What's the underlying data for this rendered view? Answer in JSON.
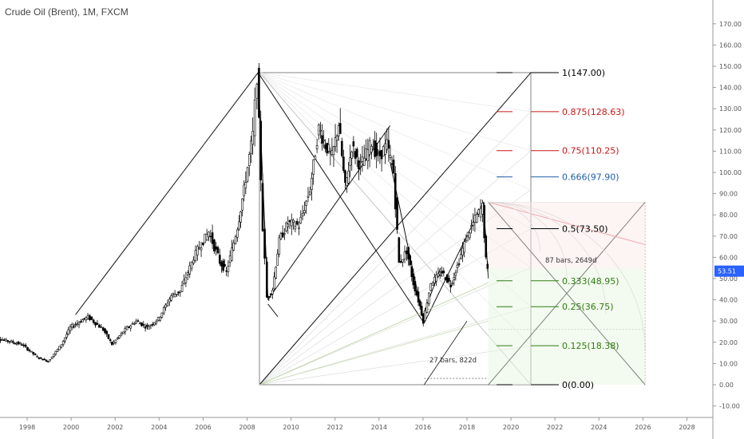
{
  "header": {
    "title": "Crude Oil (Brent), 1M, FXCM"
  },
  "chart_data": {
    "type": "candlestick",
    "title": "Crude Oil (Brent), 1M, FXCM",
    "ylim": [
      -15,
      175
    ],
    "xlim": [
      1996.3,
      2029.3
    ],
    "y_ticks": [
      "-10.00",
      "0.00",
      "10.00",
      "20.00",
      "30.00",
      "40.00",
      "50.00",
      "60.00",
      "70.00",
      "80.00",
      "90.00",
      "100.00",
      "110.00",
      "120.00",
      "130.00",
      "140.00",
      "150.00",
      "160.00",
      "170.00"
    ],
    "x_ticks": [
      "1998",
      "2000",
      "2002",
      "2004",
      "2006",
      "2008",
      "2010",
      "2012",
      "2014",
      "2016",
      "2018",
      "2020",
      "2022",
      "2024",
      "2026",
      "2028"
    ],
    "last_price": {
      "value": 53.51,
      "label": "53.51",
      "color": "#2962ff"
    },
    "price_path": [
      {
        "x": 1996.3,
        "y": 23
      },
      {
        "x": 1997.0,
        "y": 21
      },
      {
        "x": 1997.8,
        "y": 19
      },
      {
        "x": 1998.5,
        "y": 13
      },
      {
        "x": 1999.0,
        "y": 11
      },
      {
        "x": 1999.6,
        "y": 19
      },
      {
        "x": 2000.0,
        "y": 27
      },
      {
        "x": 2000.8,
        "y": 32
      },
      {
        "x": 2001.5,
        "y": 26
      },
      {
        "x": 2001.9,
        "y": 19
      },
      {
        "x": 2002.5,
        "y": 26
      },
      {
        "x": 2003.0,
        "y": 30
      },
      {
        "x": 2003.5,
        "y": 27
      },
      {
        "x": 2004.0,
        "y": 31
      },
      {
        "x": 2004.6,
        "y": 42
      },
      {
        "x": 2005.0,
        "y": 44
      },
      {
        "x": 2005.7,
        "y": 62
      },
      {
        "x": 2006.3,
        "y": 72
      },
      {
        "x": 2006.8,
        "y": 58
      },
      {
        "x": 2007.1,
        "y": 53
      },
      {
        "x": 2007.6,
        "y": 74
      },
      {
        "x": 2007.9,
        "y": 92
      },
      {
        "x": 2008.3,
        "y": 118
      },
      {
        "x": 2008.5,
        "y": 145
      },
      {
        "x": 2008.75,
        "y": 75
      },
      {
        "x": 2008.95,
        "y": 41
      },
      {
        "x": 2009.2,
        "y": 45
      },
      {
        "x": 2009.5,
        "y": 68
      },
      {
        "x": 2009.9,
        "y": 76
      },
      {
        "x": 2010.4,
        "y": 75
      },
      {
        "x": 2010.9,
        "y": 92
      },
      {
        "x": 2011.3,
        "y": 121
      },
      {
        "x": 2011.6,
        "y": 113
      },
      {
        "x": 2011.9,
        "y": 107
      },
      {
        "x": 2012.2,
        "y": 123
      },
      {
        "x": 2012.5,
        "y": 92
      },
      {
        "x": 2012.8,
        "y": 112
      },
      {
        "x": 2013.2,
        "y": 103
      },
      {
        "x": 2013.7,
        "y": 114
      },
      {
        "x": 2014.0,
        "y": 107
      },
      {
        "x": 2014.4,
        "y": 113
      },
      {
        "x": 2014.7,
        "y": 100
      },
      {
        "x": 2014.95,
        "y": 57
      },
      {
        "x": 2015.3,
        "y": 63
      },
      {
        "x": 2015.6,
        "y": 48
      },
      {
        "x": 2015.9,
        "y": 37
      },
      {
        "x": 2016.05,
        "y": 30
      },
      {
        "x": 2016.4,
        "y": 48
      },
      {
        "x": 2016.9,
        "y": 53
      },
      {
        "x": 2017.3,
        "y": 47
      },
      {
        "x": 2017.6,
        "y": 56
      },
      {
        "x": 2018.0,
        "y": 69
      },
      {
        "x": 2018.4,
        "y": 78
      },
      {
        "x": 2018.75,
        "y": 84
      },
      {
        "x": 2018.9,
        "y": 58
      },
      {
        "x": 2018.97,
        "y": 53.51
      }
    ],
    "fib_levels": [
      {
        "label": "1(147.00)",
        "value": 147.0,
        "color": "#000000"
      },
      {
        "label": "0.875(128.63)",
        "value": 128.63,
        "color": "#cc1414"
      },
      {
        "label": "0.75(110.25)",
        "value": 110.25,
        "color": "#cc1414"
      },
      {
        "label": "0.666(97.90)",
        "value": 97.9,
        "color": "#1f5fa8"
      },
      {
        "label": "0.5(73.50)",
        "value": 73.5,
        "color": "#000000"
      },
      {
        "label": "0.333(48.95)",
        "value": 48.95,
        "color": "#2e7d12"
      },
      {
        "label": "0.25(36.75)",
        "value": 36.75,
        "color": "#2e7d12"
      },
      {
        "label": "0.125(18.38)",
        "value": 18.38,
        "color": "#2e7d12"
      },
      {
        "label": "0(0.00)",
        "value": 0.0,
        "color": "#000000"
      }
    ],
    "annotations": [
      {
        "text": "87 bars, 2649d"
      },
      {
        "text": "27 bars, 822d"
      }
    ]
  }
}
